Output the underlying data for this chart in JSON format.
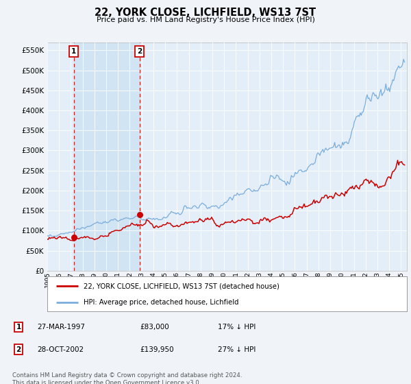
{
  "title": "22, YORK CLOSE, LICHFIELD, WS13 7ST",
  "subtitle": "Price paid vs. HM Land Registry's House Price Index (HPI)",
  "ytick_values": [
    0,
    50000,
    100000,
    150000,
    200000,
    250000,
    300000,
    350000,
    400000,
    450000,
    500000,
    550000
  ],
  "ylim": [
    0,
    570000
  ],
  "xlim_start": 1995.0,
  "xlim_end": 2025.5,
  "hpi_color": "#7aaddc",
  "price_color": "#cc0000",
  "transaction1_x": 1997.24,
  "transaction1_y": 83000,
  "transaction2_x": 2002.83,
  "transaction2_y": 139950,
  "legend_label1": "22, YORK CLOSE, LICHFIELD, WS13 7ST (detached house)",
  "legend_label2": "HPI: Average price, detached house, Lichfield",
  "footnote": "Contains HM Land Registry data © Crown copyright and database right 2024.\nThis data is licensed under the Open Government Licence v3.0.",
  "background_color": "#f0f4f8",
  "plot_bg_color": "#e4eef8",
  "shade_color": "#d0e4f4"
}
